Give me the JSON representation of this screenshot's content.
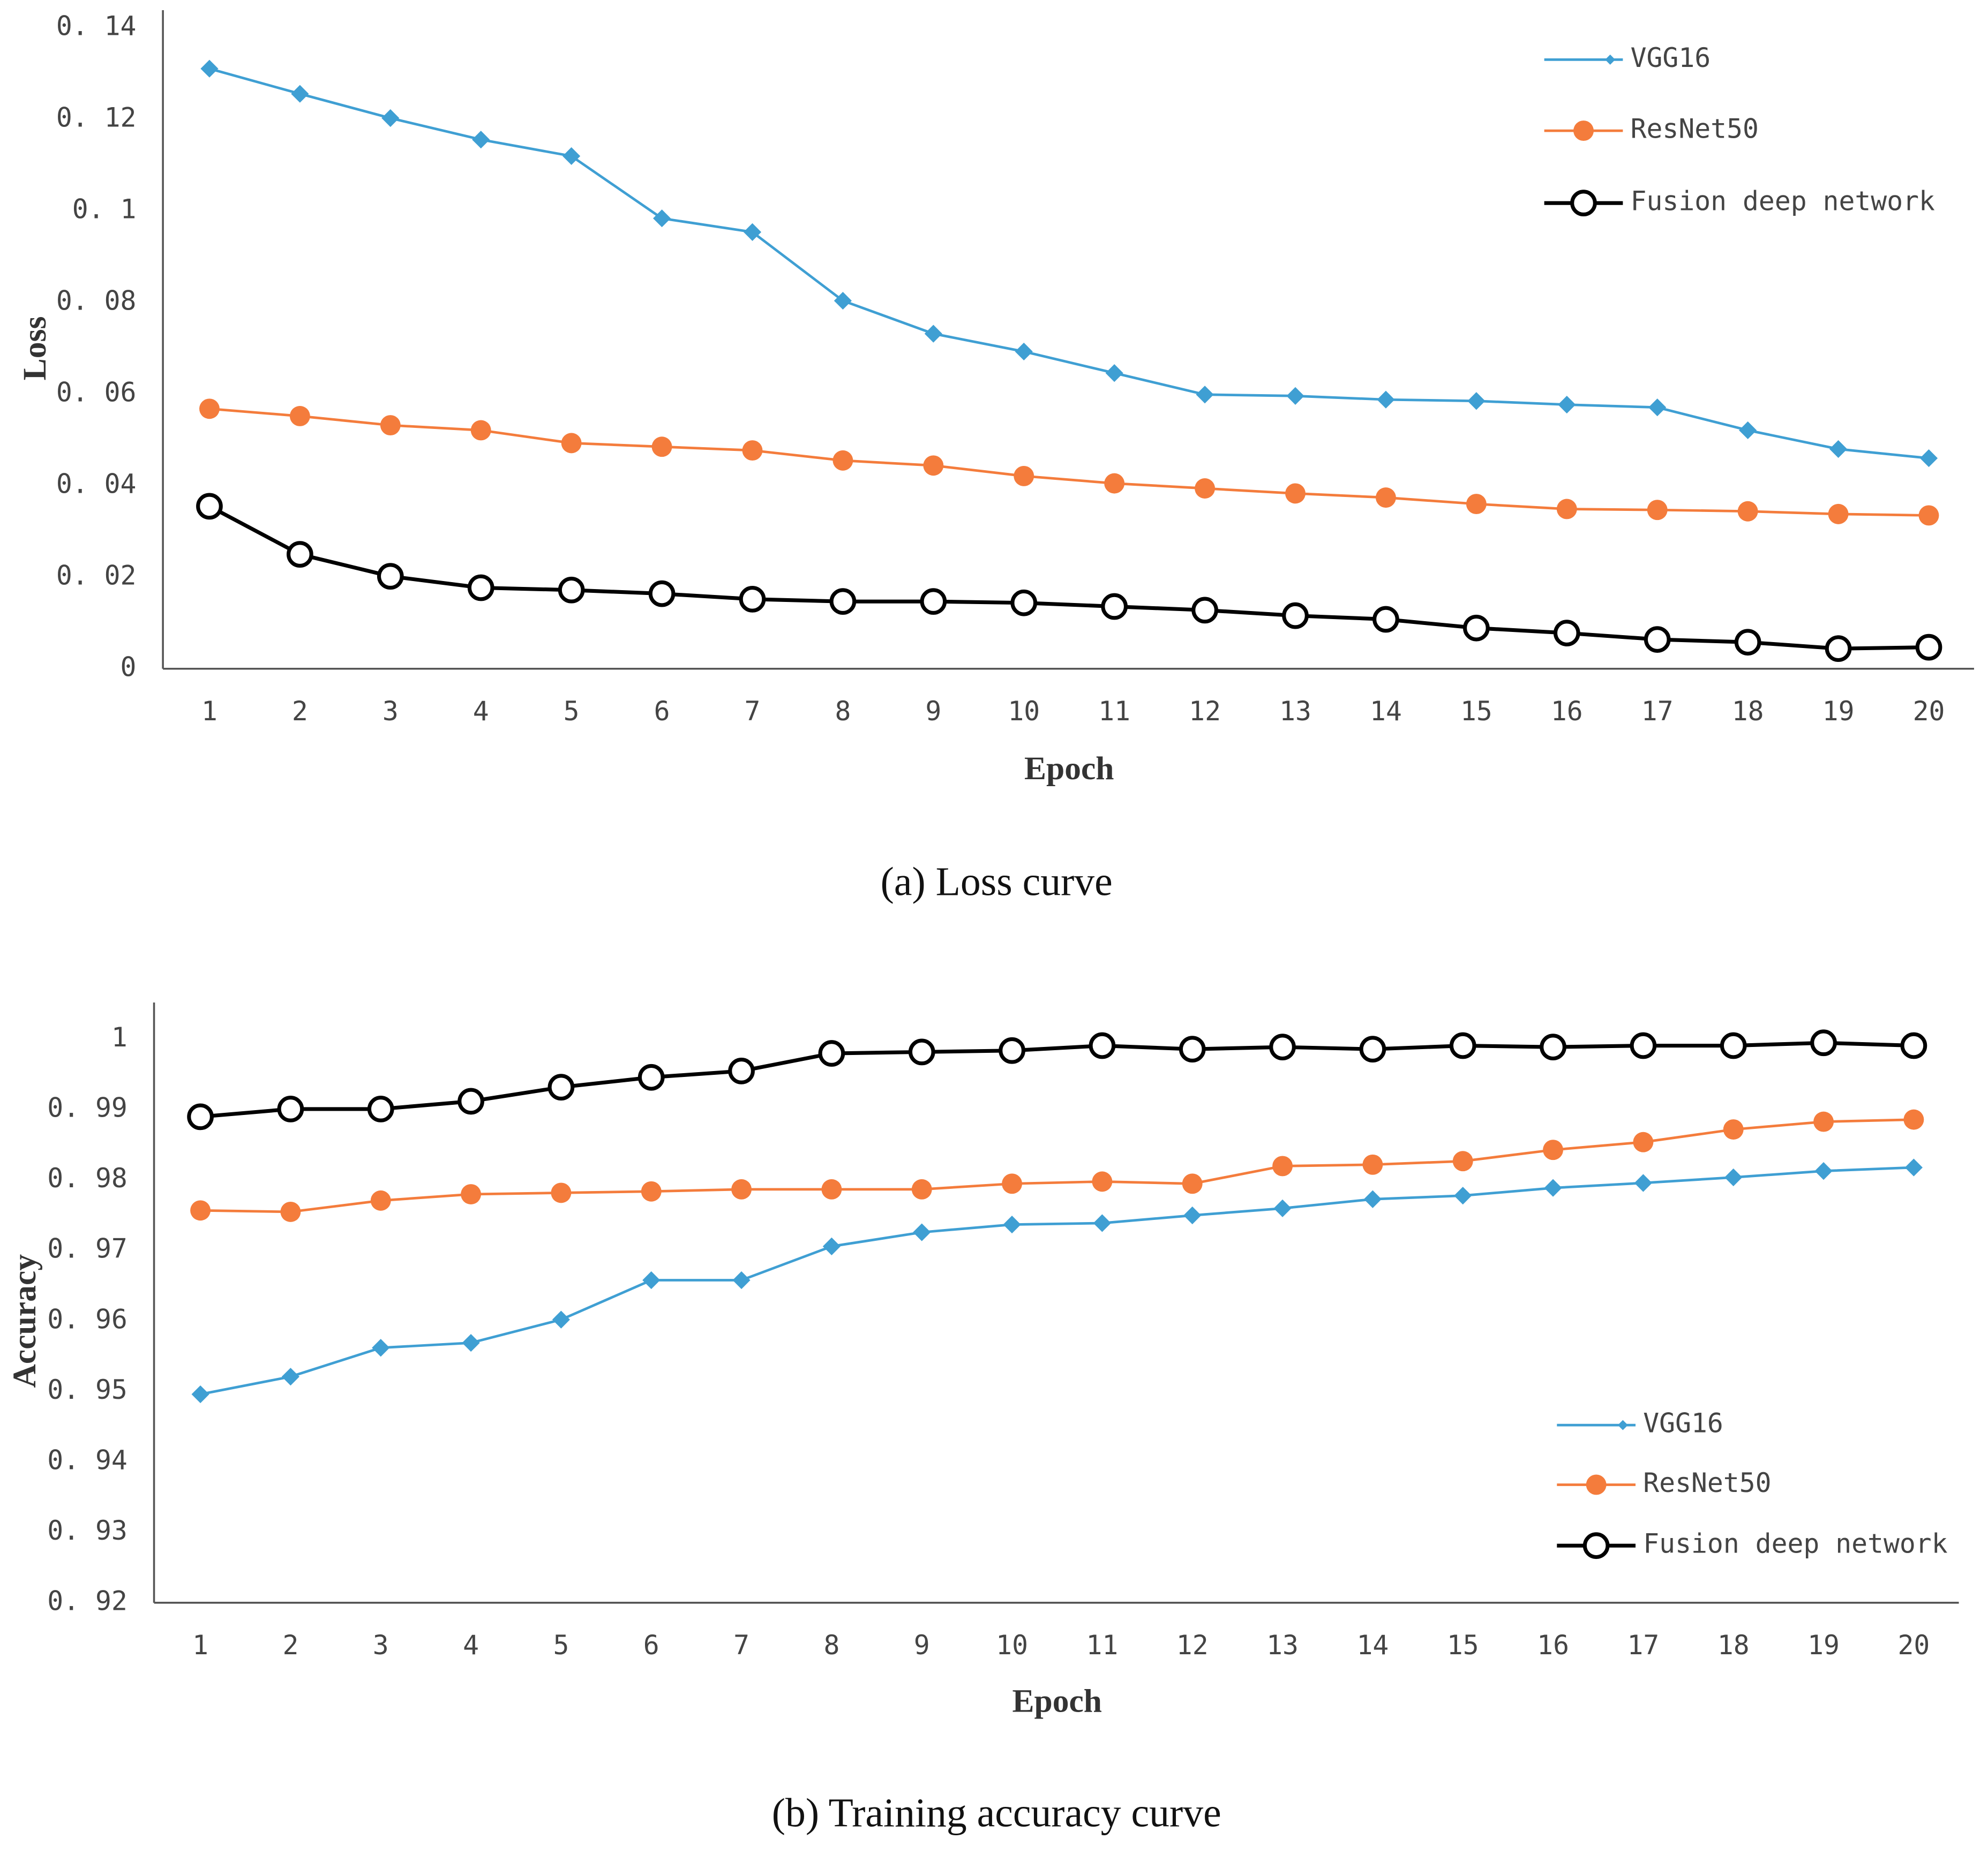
{
  "chart_data": [
    {
      "type": "line",
      "caption": "(a) Loss curve",
      "x_label": "Epoch",
      "y_label": "Loss",
      "categories": [
        "1",
        "2",
        "3",
        "4",
        "5",
        "6",
        "7",
        "8",
        "9",
        "10",
        "11",
        "12",
        "13",
        "14",
        "15",
        "16",
        "17",
        "18",
        "19",
        "20"
      ],
      "ylim": [
        0,
        0.14
      ],
      "yticks": [
        0,
        {
          "value": 0.02,
          "label": "0. 02"
        },
        {
          "value": 0.04,
          "label": "0. 04"
        },
        {
          "value": 0.06,
          "label": "0. 06"
        },
        {
          "value": 0.08,
          "label": "0. 08"
        },
        {
          "value": 0.1,
          "label": "0. 1"
        },
        {
          "value": 0.12,
          "label": "0. 12"
        },
        {
          "value": 0.14,
          "label": "0. 14"
        }
      ],
      "grid": false,
      "legend": "upper right",
      "series": [
        {
          "name": "VGG16",
          "color": "#3f9fd3",
          "marker": "diamond",
          "values": [
            0.1311,
            0.1256,
            0.1203,
            0.1156,
            0.112,
            0.0984,
            0.0954,
            0.0804,
            0.0732,
            0.0693,
            0.0646,
            0.0599,
            0.0596,
            0.0588,
            0.0585,
            0.0577,
            0.0571,
            0.0521,
            0.048,
            0.046
          ]
        },
        {
          "name": "ResNet50",
          "color": "#f47c3c",
          "marker": "circle",
          "values": [
            0.0568,
            0.0552,
            0.0532,
            0.0521,
            0.0493,
            0.0485,
            0.0477,
            0.0455,
            0.0444,
            0.0421,
            0.0405,
            0.0394,
            0.0383,
            0.0374,
            0.036,
            0.0349,
            0.0347,
            0.0344,
            0.0338,
            0.0335
          ]
        },
        {
          "name": "Fusion deep network",
          "color": "#000000",
          "marker": "hollow-circle",
          "values": [
            0.0355,
            0.025,
            0.0202,
            0.0177,
            0.0172,
            0.0164,
            0.0152,
            0.0147,
            0.0147,
            0.0144,
            0.0136,
            0.0128,
            0.0116,
            0.0108,
            0.0089,
            0.0078,
            0.0064,
            0.0058,
            0.0044,
            0.0047
          ]
        }
      ]
    },
    {
      "type": "line",
      "caption": "(b) Training accuracy curve",
      "x_label": "Epoch",
      "y_label": "Accuracy",
      "categories": [
        "1",
        "2",
        "3",
        "4",
        "5",
        "6",
        "7",
        "8",
        "9",
        "10",
        "11",
        "12",
        "13",
        "14",
        "15",
        "16",
        "17",
        "18",
        "19",
        "20"
      ],
      "ylim": [
        0.92,
        1
      ],
      "yticks": [
        {
          "value": 0.92,
          "label": "0. 92"
        },
        {
          "value": 0.93,
          "label": "0. 93"
        },
        {
          "value": 0.94,
          "label": "0. 94"
        },
        {
          "value": 0.95,
          "label": "0. 95"
        },
        {
          "value": 0.96,
          "label": "0. 96"
        },
        {
          "value": 0.97,
          "label": "0. 97"
        },
        {
          "value": 0.98,
          "label": "0. 98"
        },
        {
          "value": 0.99,
          "label": "0. 99"
        },
        1
      ],
      "grid": false,
      "legend": "lower right",
      "series": [
        {
          "name": "VGG16",
          "color": "#3f9fd3",
          "marker": "diamond",
          "values": [
            0.9496,
            0.9521,
            0.9562,
            0.9569,
            0.9602,
            0.9658,
            0.9658,
            0.9706,
            0.9726,
            0.9737,
            0.9739,
            0.975,
            0.976,
            0.9773,
            0.9778,
            0.9789,
            0.9796,
            0.9804,
            0.9813,
            0.9818
          ]
        },
        {
          "name": "ResNet50",
          "color": "#f47c3c",
          "marker": "circle",
          "values": [
            0.9757,
            0.9755,
            0.9771,
            0.978,
            0.9782,
            0.9784,
            0.9787,
            0.9787,
            0.9787,
            0.9795,
            0.9798,
            0.9795,
            0.982,
            0.9822,
            0.9827,
            0.9843,
            0.9854,
            0.9872,
            0.9883,
            0.9886
          ]
        },
        {
          "name": "Fusion deep network",
          "color": "#000000",
          "marker": "hollow-circle",
          "values": [
            0.989,
            0.9901,
            0.9901,
            0.9912,
            0.9932,
            0.9946,
            0.9955,
            0.998,
            0.9982,
            0.9984,
            0.9991,
            0.9986,
            0.9989,
            0.9986,
            0.9991,
            0.9989,
            0.9991,
            0.9991,
            0.9995,
            0.9991
          ]
        }
      ]
    }
  ]
}
